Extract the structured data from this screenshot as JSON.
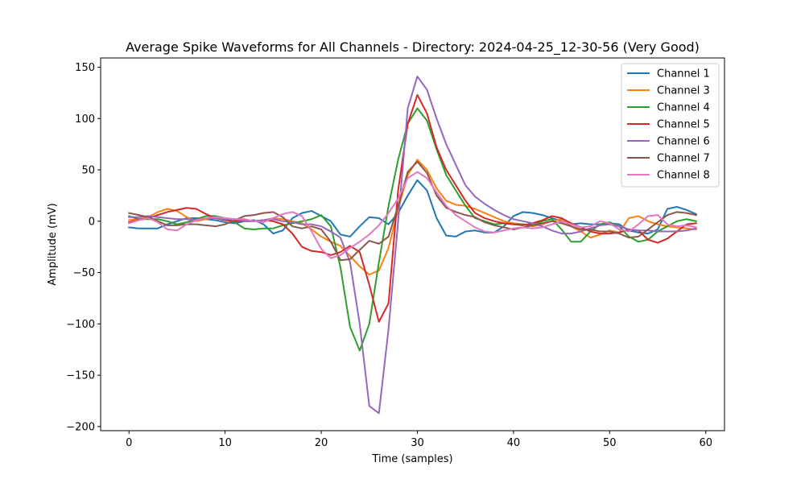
{
  "chart_data": {
    "type": "line",
    "title": "Average Spike Waveforms for All Channels - Directory: 2024-04-25_12-30-56 (Very Good)",
    "xlabel": "Time (samples)",
    "ylabel": "Amplitude (mV)",
    "xlim": [
      -2.95,
      61.95
    ],
    "ylim": [
      -204,
      159
    ],
    "xticks": [
      0,
      10,
      20,
      30,
      40,
      50,
      60
    ],
    "yticks": [
      -200,
      -150,
      -100,
      -50,
      0,
      50,
      100,
      150
    ],
    "legend_position": "top-right",
    "grid": false,
    "x": [
      0,
      1,
      2,
      3,
      4,
      5,
      6,
      7,
      8,
      9,
      10,
      11,
      12,
      13,
      14,
      15,
      16,
      17,
      18,
      19,
      20,
      21,
      22,
      23,
      24,
      25,
      26,
      27,
      28,
      29,
      30,
      31,
      32,
      33,
      34,
      35,
      36,
      37,
      38,
      39,
      40,
      41,
      42,
      43,
      44,
      45,
      46,
      47,
      48,
      49,
      50,
      51,
      52,
      53,
      54,
      55,
      56,
      57,
      58,
      59
    ],
    "series": [
      {
        "name": "Channel 1",
        "color": "#1f77b4",
        "values": [
          -6,
          -7,
          -7,
          -7,
          -3,
          0,
          3,
          3,
          2,
          1,
          -1,
          -2,
          0,
          1,
          -3,
          -12,
          -9,
          3,
          8,
          10,
          5,
          0,
          -13,
          -15,
          -5,
          4,
          3,
          -3,
          8,
          25,
          40,
          30,
          3,
          -14,
          -15,
          -10,
          -9,
          -11,
          -11,
          -5,
          5,
          9,
          8,
          6,
          3,
          0,
          -3,
          -2,
          -3,
          -3,
          -2,
          -3,
          -9,
          -11,
          -12,
          -8,
          12,
          14,
          11,
          7
        ]
      },
      {
        "name": "Channel 3",
        "color": "#ff7f0e",
        "values": [
          1,
          2,
          4,
          9,
          12,
          10,
          4,
          0,
          2,
          4,
          3,
          2,
          1,
          0,
          1,
          3,
          2,
          0,
          -2,
          -8,
          -15,
          -20,
          -24,
          -34,
          -44,
          -52,
          -48,
          -26,
          12,
          45,
          60,
          50,
          32,
          20,
          16,
          15,
          12,
          8,
          4,
          0,
          -2,
          -3,
          -5,
          -3,
          0,
          2,
          -5,
          -10,
          -16,
          -13,
          -9,
          -11,
          3,
          5,
          0,
          -3,
          -5,
          -6,
          -7,
          -8
        ]
      },
      {
        "name": "Channel 4",
        "color": "#2ca02c",
        "values": [
          5,
          2,
          2,
          2,
          0,
          -3,
          -1,
          2,
          5,
          5,
          3,
          -1,
          -7,
          -8,
          -7,
          -7,
          -4,
          -2,
          0,
          2,
          6,
          -5,
          -45,
          -103,
          -126,
          -100,
          -40,
          15,
          60,
          95,
          110,
          98,
          70,
          45,
          30,
          15,
          3,
          0,
          -3,
          -2,
          -3,
          -3,
          -4,
          0,
          2,
          -8,
          -20,
          -20,
          -10,
          -3,
          -1,
          -5,
          -15,
          -20,
          -18,
          -10,
          -5,
          0,
          2,
          0
        ]
      },
      {
        "name": "Channel 5",
        "color": "#d62728",
        "values": [
          -1,
          1,
          3,
          6,
          9,
          11,
          13,
          12,
          7,
          3,
          1,
          0,
          0,
          0,
          1,
          0,
          -3,
          -12,
          -25,
          -29,
          -30,
          -33,
          -30,
          -24,
          -30,
          -62,
          -98,
          -80,
          30,
          95,
          123,
          105,
          72,
          50,
          35,
          20,
          8,
          3,
          0,
          -2,
          -3,
          -4,
          -2,
          1,
          5,
          3,
          -2,
          -6,
          -10,
          -12,
          -12,
          -11,
          -8,
          -9,
          -18,
          -21,
          -17,
          -10,
          -3,
          -2
        ]
      },
      {
        "name": "Channel 6",
        "color": "#9467bd",
        "values": [
          4,
          4,
          5,
          4,
          3,
          2,
          2,
          1,
          3,
          3,
          2,
          2,
          0,
          0,
          1,
          2,
          0,
          -1,
          -3,
          -3,
          -5,
          -10,
          -16,
          -40,
          -100,
          -180,
          -187,
          -105,
          0,
          110,
          141,
          128,
          100,
          75,
          55,
          35,
          24,
          17,
          11,
          6,
          2,
          0,
          -2,
          -5,
          -9,
          -12,
          -12,
          -10,
          -7,
          -4,
          -3,
          -5,
          -8,
          -9,
          -9,
          -10,
          -10,
          -10,
          -9,
          -7
        ]
      },
      {
        "name": "Channel 7",
        "color": "#8c564b",
        "values": [
          8,
          6,
          4,
          0,
          -4,
          -4,
          -3,
          -3,
          -4,
          -5,
          -3,
          1,
          5,
          6,
          8,
          9,
          4,
          -5,
          -7,
          -5,
          -8,
          -20,
          -38,
          -37,
          -28,
          -19,
          -22,
          -15,
          15,
          48,
          58,
          47,
          25,
          13,
          9,
          6,
          4,
          -1,
          -4,
          -6,
          -8,
          -6,
          -4,
          -2,
          0,
          -2,
          -5,
          -8,
          -8,
          -10,
          -10,
          -12,
          -16,
          -15,
          -8,
          -1,
          6,
          9,
          8,
          6
        ]
      },
      {
        "name": "Channel 8",
        "color": "#e377c2",
        "values": [
          -2,
          1,
          3,
          -1,
          -8,
          -9,
          -3,
          1,
          3,
          4,
          3,
          2,
          2,
          0,
          -1,
          3,
          7,
          9,
          5,
          -10,
          -27,
          -36,
          -33,
          -26,
          -20,
          -13,
          -4,
          8,
          22,
          42,
          48,
          42,
          28,
          15,
          6,
          0,
          -6,
          -10,
          -11,
          -9,
          -7,
          -6,
          -7,
          -6,
          -3,
          0,
          -3,
          -6,
          -5,
          0,
          -2,
          -8,
          -10,
          -3,
          5,
          6,
          -3,
          -5,
          -4,
          -6
        ]
      }
    ]
  }
}
